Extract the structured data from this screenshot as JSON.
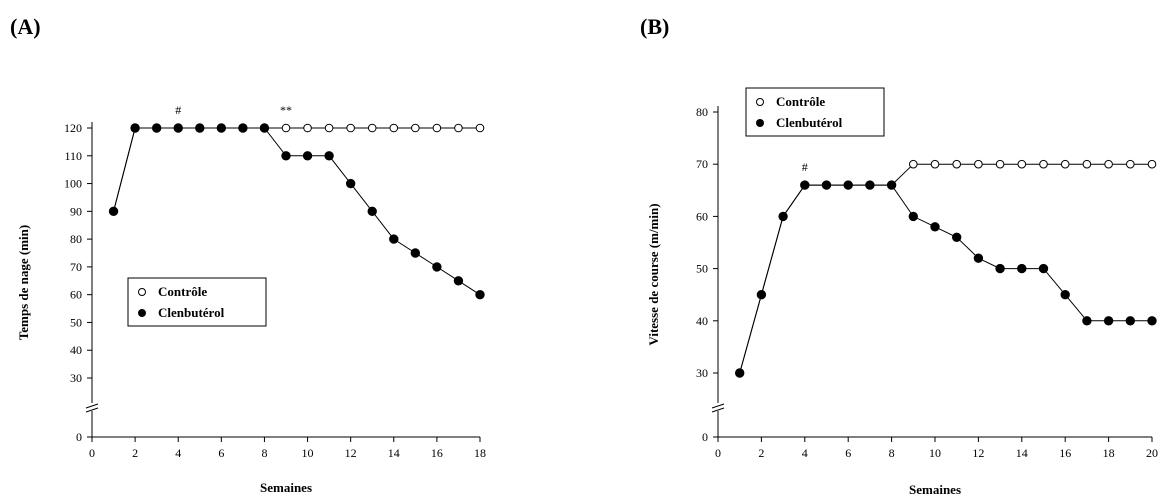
{
  "panels": {
    "a_label": "(A)",
    "b_label": "(B)"
  },
  "chart_data": [
    {
      "type": "line",
      "xlabel": "Semaines",
      "ylabel": "Temps de nage (min)",
      "xlim": [
        0,
        18
      ],
      "xticks": [
        0,
        2,
        4,
        6,
        8,
        10,
        12,
        14,
        16,
        18
      ],
      "yticks": [
        0,
        30,
        40,
        50,
        60,
        70,
        80,
        90,
        100,
        110,
        120
      ],
      "y_axis_break": "between 0 and 30",
      "legend": "center-left",
      "annotations": [
        {
          "text": "#",
          "x": 4,
          "y": 120
        },
        {
          "text": "**",
          "x": 9,
          "y": 120
        }
      ],
      "series": [
        {
          "name": "Contrôle",
          "marker": "open-circle",
          "x": [
            1,
            2,
            3,
            4,
            5,
            6,
            7,
            8,
            9,
            10,
            11,
            12,
            13,
            14,
            15,
            16,
            17,
            18
          ],
          "y": [
            90,
            120,
            120,
            120,
            120,
            120,
            120,
            120,
            120,
            120,
            120,
            120,
            120,
            120,
            120,
            120,
            120,
            120
          ]
        },
        {
          "name": "Clenbutérol",
          "marker": "filled-circle",
          "x": [
            1,
            2,
            3,
            4,
            5,
            6,
            7,
            8,
            9,
            10,
            11,
            12,
            13,
            14,
            15,
            16,
            17,
            18
          ],
          "y": [
            90,
            120,
            120,
            120,
            120,
            120,
            120,
            120,
            110,
            110,
            110,
            100,
            90,
            80,
            75,
            70,
            65,
            60
          ]
        }
      ]
    },
    {
      "type": "line",
      "xlabel": "Semaines",
      "ylabel": "Vitesse de course (m/min)",
      "xlim": [
        0,
        20
      ],
      "xticks": [
        0,
        2,
        4,
        6,
        8,
        10,
        12,
        14,
        16,
        18,
        20
      ],
      "yticks": [
        0,
        30,
        40,
        50,
        60,
        70,
        80
      ],
      "y_axis_break": "between 0 and 30",
      "legend": "top-left",
      "annotations": [
        {
          "text": "#",
          "x": 4,
          "y": 66
        }
      ],
      "series": [
        {
          "name": "Contrôle",
          "marker": "open-circle",
          "x": [
            1,
            2,
            3,
            4,
            5,
            6,
            7,
            8,
            9,
            10,
            11,
            12,
            13,
            14,
            15,
            16,
            17,
            18,
            19,
            20
          ],
          "y": [
            30,
            45,
            60,
            66,
            66,
            66,
            66,
            66,
            70,
            70,
            70,
            70,
            70,
            70,
            70,
            70,
            70,
            70,
            70,
            70
          ]
        },
        {
          "name": "Clenbutérol",
          "marker": "filled-circle",
          "x": [
            1,
            2,
            3,
            4,
            5,
            6,
            7,
            8,
            9,
            10,
            11,
            12,
            13,
            14,
            15,
            16,
            17,
            18,
            19,
            20
          ],
          "y": [
            30,
            45,
            60,
            66,
            66,
            66,
            66,
            66,
            60,
            58,
            56,
            52,
            50,
            50,
            50,
            45,
            40,
            40,
            40,
            40
          ]
        }
      ]
    }
  ]
}
